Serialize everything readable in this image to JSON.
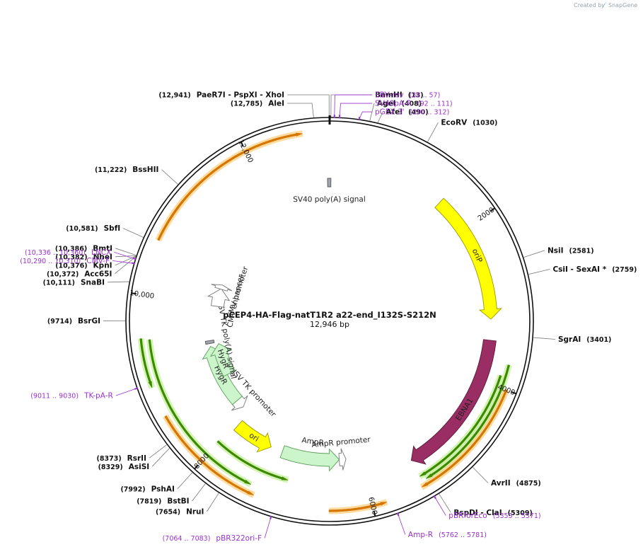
{
  "credit": {
    "text": "Created by",
    "brand": "SnapGene"
  },
  "plasmid": {
    "name": "pCEP4-HA-Flag-natT1R2 a22-end_I132S-S212N",
    "length": 12946,
    "length_label": "12,946 bp"
  },
  "ticks": [
    {
      "pos": 2000,
      "label": "2000"
    },
    {
      "pos": 4000,
      "label": "4000"
    },
    {
      "pos": 6000,
      "label": "6000"
    },
    {
      "pos": 8000,
      "label": "8000"
    },
    {
      "pos": 10000,
      "label": "10,000"
    },
    {
      "pos": 12000,
      "label": "12,000"
    }
  ],
  "features": [
    {
      "name": "oriP",
      "start": 1540,
      "end": 3210,
      "dir": 1,
      "color": "#ffff00",
      "stroke": "#999900",
      "lane": 1
    },
    {
      "name": "EBNA1",
      "start": 3480,
      "end": 5380,
      "dir": 1,
      "color": "#9a2d63",
      "stroke": "#5c1a3a",
      "lane": 1
    },
    {
      "name": "AmpR promoter",
      "start": 6230,
      "end": 6330,
      "dir": -1,
      "color": "#ffffff",
      "stroke": "#777777",
      "lane": 2
    },
    {
      "name": "AmpR",
      "start": 6330,
      "end": 7190,
      "dir": -1,
      "color": "#ccf5cc",
      "stroke": "#5aa05a",
      "lane": 2
    },
    {
      "name": "ori",
      "start": 7370,
      "end": 7960,
      "dir": -1,
      "color": "#ffff00",
      "stroke": "#999900",
      "lane": 2
    },
    {
      "name": "HSV TK promoter",
      "start": 8100,
      "end": 8250,
      "dir": -1,
      "color": "#ffffff",
      "stroke": "#777777",
      "lane": 3
    },
    {
      "name": "HygR",
      "start": 8250,
      "end": 9280,
      "dir": 1,
      "color": "#ccf5cc",
      "stroke": "#5aa05a",
      "lane": 3
    },
    {
      "name": "HygR",
      "start": 8720,
      "end": 9300,
      "dir": 1,
      "color": "#ccf5cc",
      "stroke": "#5aa05a",
      "lane": 4
    },
    {
      "name": "HSV TK poly(A) signal",
      "start": 9330,
      "end": 9380,
      "dir": 0,
      "color": "#a0a4ad",
      "stroke": "#555555",
      "lane": 3
    },
    {
      "name": "CMV enhancer",
      "start": 9980,
      "end": 10310,
      "dir": 1,
      "color": "#ffffff",
      "stroke": "#777777",
      "lane": 4
    },
    {
      "name": "CMV promoter",
      "start": 10300,
      "end": 10380,
      "dir": 1,
      "color": "#ffffff",
      "stroke": "#777777",
      "lane": 4
    },
    {
      "name": "SV40 poly(A) signal",
      "start": 12890,
      "end": 12990,
      "dir": 0,
      "color": "#a0a4ad",
      "stroke": "#555555",
      "lane": 2
    }
  ],
  "orfs": [
    {
      "start": 10620,
      "end": 12650,
      "dir": 1,
      "color": "#d47600",
      "glow": "#ffcf80",
      "lane": 0
    },
    {
      "start": 3730,
      "end": 5340,
      "dir": 1,
      "color": "#3d8a00",
      "glow": "#c4f09c",
      "lane": 0.6
    },
    {
      "start": 3870,
      "end": 5390,
      "dir": 1,
      "color": "#3d8a00",
      "glow": "#c4f09c",
      "lane": 1.2
    },
    {
      "start": 4000,
      "end": 5430,
      "dir": 1,
      "color": "#d47600",
      "glow": "#ffcf80",
      "lane": 0
    },
    {
      "start": 5840,
      "end": 6480,
      "dir": -1,
      "color": "#d47600",
      "glow": "#ffcf80",
      "lane": 0
    },
    {
      "start": 7000,
      "end": 8020,
      "dir": -1,
      "color": "#3d8a00",
      "glow": "#c4f09c",
      "lane": 3
    },
    {
      "start": 7320,
      "end": 8630,
      "dir": -1,
      "color": "#d47600",
      "glow": "#ffcf80",
      "lane": 0
    },
    {
      "start": 7400,
      "end": 9500,
      "dir": -1,
      "color": "#3d8a00",
      "glow": "#c4f09c",
      "lane": 1
    },
    {
      "start": 8970,
      "end": 9520,
      "dir": -1,
      "color": "#3d8a00",
      "glow": "#c4f09c",
      "lane": 0
    }
  ],
  "sites": [
    {
      "name": "BamHI",
      "pos_label": "(13)",
      "bp": 13
    },
    {
      "name": "PaeR7I - PspXI - XhoI",
      "pos_label": "(12,941)",
      "bp": 12941
    },
    {
      "name": "AleI",
      "pos_label": "(12,785)",
      "bp": 12785
    },
    {
      "name": "AgeI",
      "pos_label": "(408)",
      "bp": 408
    },
    {
      "name": "AfeI",
      "pos_label": "(490)",
      "bp": 490
    },
    {
      "name": "EcoRV",
      "pos_label": "(1030)",
      "bp": 1030
    },
    {
      "name": "NsiI",
      "pos_label": "(2581)",
      "bp": 2581
    },
    {
      "name": "CsiI - SexAI *",
      "pos_label": "(2759)",
      "bp": 2759
    },
    {
      "name": "SgrAI",
      "pos_label": "(3401)",
      "bp": 3401
    },
    {
      "name": "AvrII",
      "pos_label": "(4875)",
      "bp": 4875
    },
    {
      "name": "BspDI - ClaI",
      "pos_label": "(5309)",
      "bp": 5309
    },
    {
      "name": "NruI",
      "pos_label": "(7654)",
      "bp": 7654
    },
    {
      "name": "BstBI",
      "pos_label": "(7819)",
      "bp": 7819
    },
    {
      "name": "PshAI",
      "pos_label": "(7992)",
      "bp": 7992
    },
    {
      "name": "AsiSI",
      "pos_label": "(8329)",
      "bp": 8329
    },
    {
      "name": "RsrII",
      "pos_label": "(8373)",
      "bp": 8373
    },
    {
      "name": "BsrGI",
      "pos_label": "(9714)",
      "bp": 9714
    },
    {
      "name": "SnaBI",
      "pos_label": "(10,111)",
      "bp": 10111
    },
    {
      "name": "Acc65I",
      "pos_label": "(10,372)",
      "bp": 10372
    },
    {
      "name": "KpnI",
      "pos_label": "(10,376)",
      "bp": 10376
    },
    {
      "name": "NheI",
      "pos_label": "(10,382)",
      "bp": 10382
    },
    {
      "name": "BmtI",
      "pos_label": "(10,386)",
      "bp": 10386
    },
    {
      "name": "SbfI",
      "pos_label": "(10,581)",
      "bp": 10581
    },
    {
      "name": "BssHII",
      "pos_label": "(11,222)",
      "bp": 11222
    }
  ],
  "primers": [
    {
      "name": "EBV-rev",
      "pos_label": "(38 .. 57)",
      "bp": 48
    },
    {
      "name": "SV40pA-R",
      "pos_label": "(92 .. 111)",
      "bp": 100
    },
    {
      "name": "pGEX 3'",
      "pos_label": "(290 .. 312)",
      "bp": 300
    },
    {
      "name": "pBRforEco",
      "pos_label": "(5353 .. 5371)",
      "bp": 5362
    },
    {
      "name": "Amp-R",
      "pos_label": "(5762 .. 5781)",
      "bp": 5771
    },
    {
      "name": "pBR322ori-F",
      "pos_label": "(7064 .. 7083)",
      "bp": 7073
    },
    {
      "name": "TK-pA-R",
      "pos_label": "(9011 .. 9030)",
      "bp": 9020
    },
    {
      "name": "LNCX",
      "pos_label": "(10,336 .. 10,360)",
      "bp": 10348
    },
    {
      "name": "CMV-F",
      "pos_label": "(10,290 .. 10,310)",
      "bp": 10300
    }
  ]
}
